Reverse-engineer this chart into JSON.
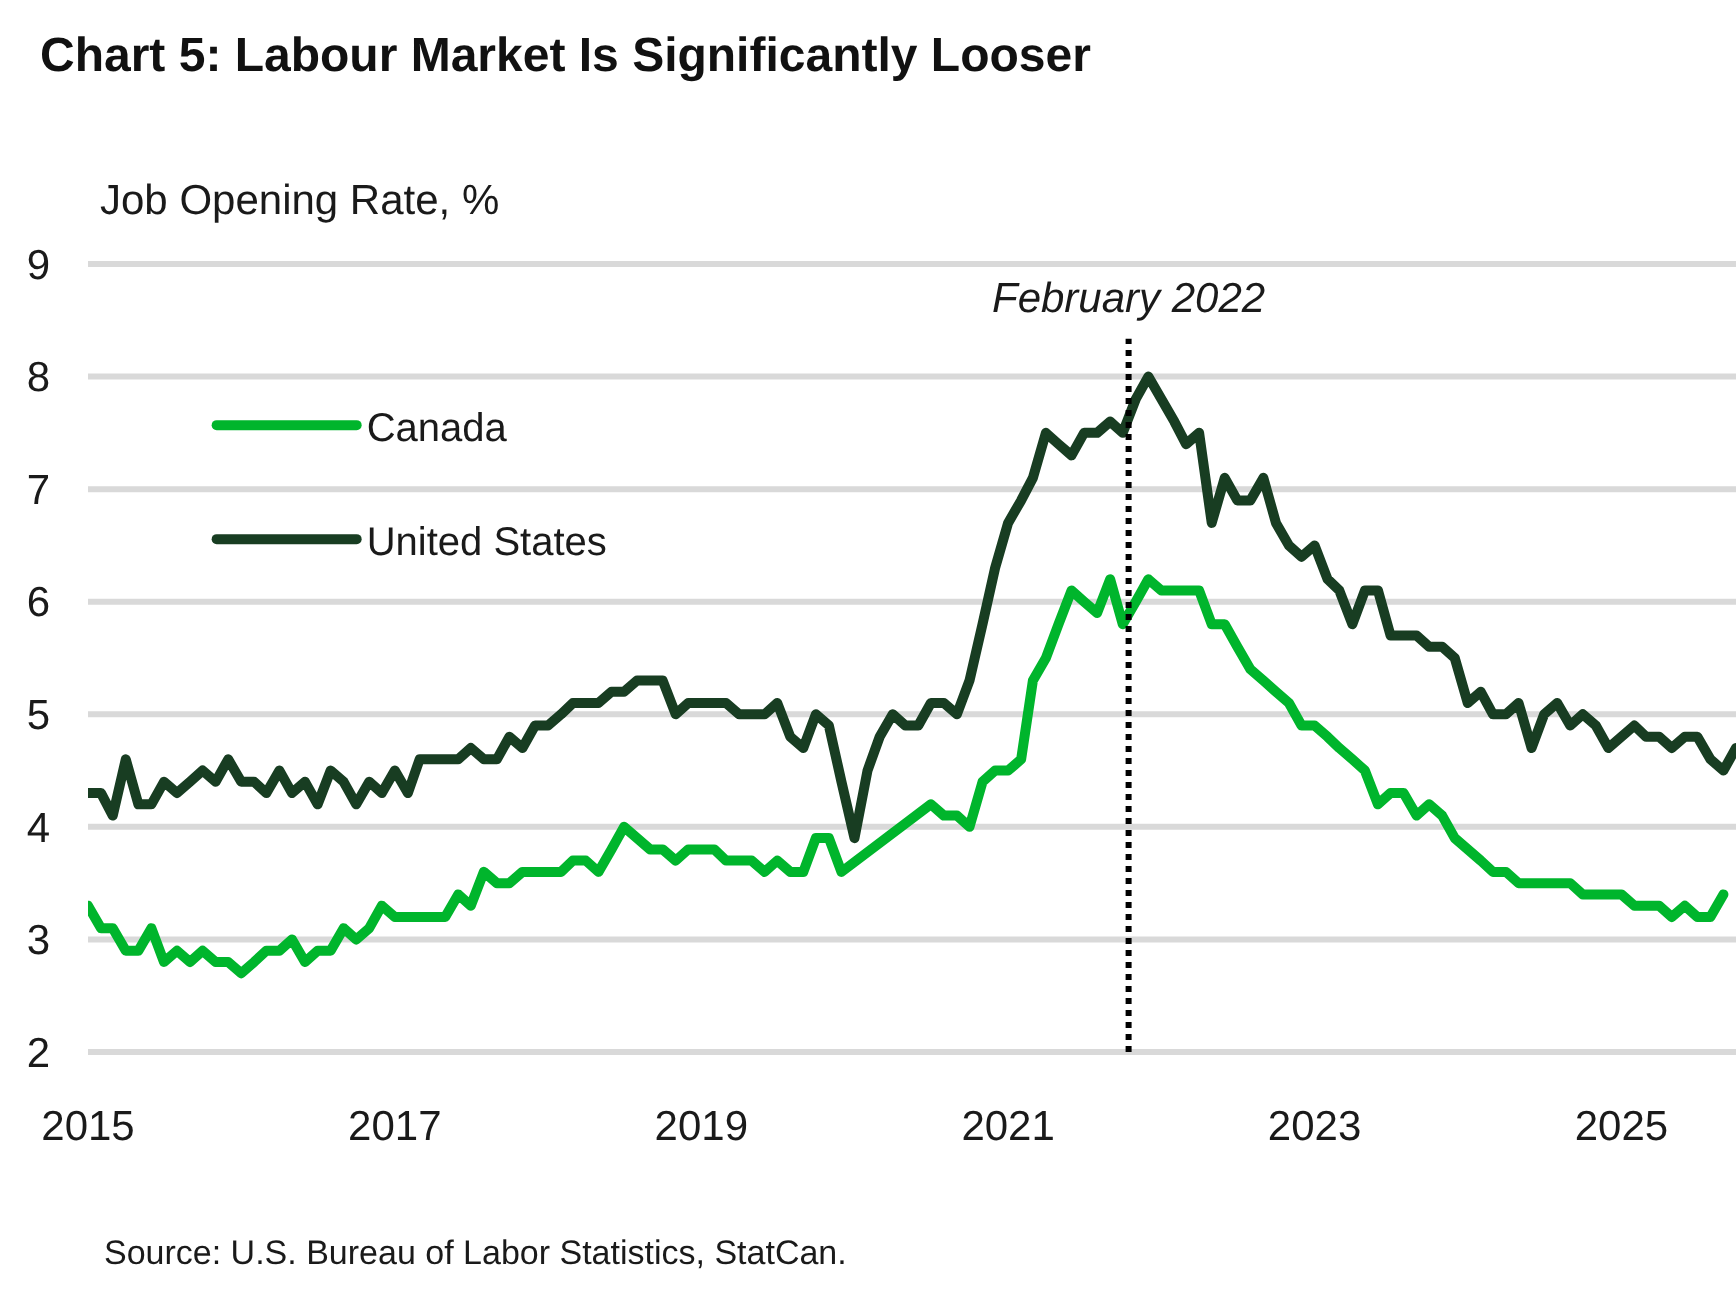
{
  "chart_data": {
    "type": "line",
    "title": "Chart 5: Labour Market Is Significantly Looser",
    "ylabel": "Job Opening Rate, %",
    "xlim": [
      "2015-01-01",
      "2025-10-01"
    ],
    "xticks": [
      "2015",
      "2017",
      "2019",
      "2021",
      "2023",
      "2025"
    ],
    "ylim": [
      2,
      9
    ],
    "yticks": [
      2,
      3,
      4,
      5,
      6,
      7,
      8,
      9
    ],
    "grid": "y",
    "legend": "top left",
    "line_style": "solid",
    "series": [
      {
        "name": "Canada",
        "color": "#00b52c",
        "x": [
          "2015-01",
          "2015-02",
          "2015-03",
          "2015-04",
          "2015-05",
          "2015-06",
          "2015-07",
          "2015-08",
          "2015-09",
          "2015-10",
          "2015-11",
          "2015-12",
          "2016-01",
          "2016-02",
          "2016-03",
          "2016-04",
          "2016-05",
          "2016-06",
          "2016-07",
          "2016-08",
          "2016-09",
          "2016-10",
          "2016-11",
          "2016-12",
          "2017-01",
          "2017-02",
          "2017-03",
          "2017-04",
          "2017-05",
          "2017-06",
          "2017-07",
          "2017-08",
          "2017-09",
          "2017-10",
          "2017-11",
          "2017-12",
          "2018-01",
          "2018-02",
          "2018-03",
          "2018-04",
          "2018-05",
          "2018-06",
          "2018-07",
          "2018-08",
          "2018-09",
          "2018-10",
          "2018-11",
          "2018-12",
          "2019-01",
          "2019-02",
          "2019-03",
          "2019-04",
          "2019-05",
          "2019-06",
          "2019-07",
          "2019-08",
          "2019-09",
          "2019-10",
          "2019-11",
          "2019-12",
          "2020-07",
          "2020-08",
          "2020-09",
          "2020-10",
          "2020-11",
          "2020-12",
          "2021-01",
          "2021-02",
          "2021-03",
          "2021-04",
          "2021-05",
          "2021-06",
          "2021-07",
          "2021-08",
          "2021-09",
          "2021-10",
          "2021-11",
          "2021-12",
          "2022-01",
          "2022-02",
          "2022-03",
          "2022-04",
          "2022-05",
          "2022-06",
          "2022-07",
          "2022-08",
          "2022-09",
          "2022-10",
          "2022-11",
          "2022-12",
          "2023-01",
          "2023-02",
          "2023-03",
          "2023-04",
          "2023-05",
          "2023-06",
          "2023-07",
          "2023-08",
          "2023-09",
          "2023-10",
          "2023-11",
          "2023-12",
          "2024-01",
          "2024-02",
          "2024-03",
          "2024-04",
          "2024-05",
          "2024-06",
          "2024-07",
          "2024-08",
          "2024-09",
          "2024-10",
          "2024-11",
          "2024-12",
          "2025-01",
          "2025-02",
          "2025-03",
          "2025-04",
          "2025-05",
          "2025-06",
          "2025-07",
          "2025-08",
          "2025-09"
        ],
        "values": [
          3.3,
          3.1,
          3.1,
          2.9,
          2.9,
          3.1,
          2.8,
          2.9,
          2.8,
          2.9,
          2.8,
          2.8,
          2.7,
          2.8,
          2.9,
          2.9,
          3.0,
          2.8,
          2.9,
          2.9,
          3.1,
          3.0,
          3.1,
          3.3,
          3.2,
          3.2,
          3.2,
          3.2,
          3.2,
          3.4,
          3.3,
          3.6,
          3.5,
          3.5,
          3.6,
          3.6,
          3.6,
          3.6,
          3.7,
          3.7,
          3.6,
          3.8,
          4.0,
          3.9,
          3.8,
          3.8,
          3.7,
          3.8,
          3.8,
          3.8,
          3.7,
          3.7,
          3.7,
          3.6,
          3.7,
          3.6,
          3.6,
          3.9,
          3.9,
          3.6,
          4.2,
          4.1,
          4.1,
          4.0,
          4.4,
          4.5,
          4.5,
          4.6,
          5.3,
          5.5,
          5.8,
          6.1,
          6.0,
          5.9,
          6.2,
          5.8,
          6.0,
          6.2,
          6.1,
          6.1,
          6.1,
          6.1,
          5.8,
          5.8,
          5.6,
          5.4,
          5.3,
          5.2,
          5.1,
          4.9,
          4.9,
          4.8,
          4.7,
          4.6,
          4.5,
          4.2,
          4.3,
          4.3,
          4.1,
          4.2,
          4.1,
          3.9,
          3.8,
          3.7,
          3.6,
          3.6,
          3.5,
          3.5,
          3.5,
          3.5,
          3.5,
          3.4,
          3.4,
          3.4,
          3.4,
          3.3,
          3.3,
          3.3,
          3.2,
          3.3,
          3.2,
          3.2,
          3.4
        ]
      },
      {
        "name": "United States",
        "color": "#183d22",
        "x": [
          "2015-01",
          "2015-02",
          "2015-03",
          "2015-04",
          "2015-05",
          "2015-06",
          "2015-07",
          "2015-08",
          "2015-09",
          "2015-10",
          "2015-11",
          "2015-12",
          "2016-01",
          "2016-02",
          "2016-03",
          "2016-04",
          "2016-05",
          "2016-06",
          "2016-07",
          "2016-08",
          "2016-09",
          "2016-10",
          "2016-11",
          "2016-12",
          "2017-01",
          "2017-02",
          "2017-03",
          "2017-04",
          "2017-05",
          "2017-06",
          "2017-07",
          "2017-08",
          "2017-09",
          "2017-10",
          "2017-11",
          "2017-12",
          "2018-01",
          "2018-02",
          "2018-03",
          "2018-04",
          "2018-05",
          "2018-06",
          "2018-07",
          "2018-08",
          "2018-09",
          "2018-10",
          "2018-11",
          "2018-12",
          "2019-01",
          "2019-02",
          "2019-03",
          "2019-04",
          "2019-05",
          "2019-06",
          "2019-07",
          "2019-08",
          "2019-09",
          "2019-10",
          "2019-11",
          "2019-12",
          "2020-01",
          "2020-02",
          "2020-03",
          "2020-04",
          "2020-05",
          "2020-06",
          "2020-07",
          "2020-08",
          "2020-09",
          "2020-10",
          "2020-11",
          "2020-12",
          "2021-01",
          "2021-02",
          "2021-03",
          "2021-04",
          "2021-05",
          "2021-06",
          "2021-07",
          "2021-08",
          "2021-09",
          "2021-10",
          "2021-11",
          "2021-12",
          "2022-01",
          "2022-02",
          "2022-03",
          "2022-04",
          "2022-05",
          "2022-06",
          "2022-07",
          "2022-08",
          "2022-09",
          "2022-10",
          "2022-11",
          "2022-12",
          "2023-01",
          "2023-02",
          "2023-03",
          "2023-04",
          "2023-05",
          "2023-06",
          "2023-07",
          "2023-08",
          "2023-09",
          "2023-10",
          "2023-11",
          "2023-12",
          "2024-01",
          "2024-02",
          "2024-03",
          "2024-04",
          "2024-05",
          "2024-06",
          "2024-07",
          "2024-08",
          "2024-09",
          "2024-10",
          "2024-11",
          "2024-12",
          "2025-01",
          "2025-02",
          "2025-03",
          "2025-04",
          "2025-05",
          "2025-06",
          "2025-07",
          "2025-08",
          "2025-09",
          "2025-10"
        ],
        "values": [
          4.3,
          4.3,
          4.1,
          4.6,
          4.2,
          4.2,
          4.4,
          4.3,
          4.4,
          4.5,
          4.4,
          4.6,
          4.4,
          4.4,
          4.3,
          4.5,
          4.3,
          4.4,
          4.2,
          4.5,
          4.4,
          4.2,
          4.4,
          4.3,
          4.5,
          4.3,
          4.6,
          4.6,
          4.6,
          4.6,
          4.7,
          4.6,
          4.6,
          4.8,
          4.7,
          4.9,
          4.9,
          5.0,
          5.1,
          5.1,
          5.1,
          5.2,
          5.2,
          5.3,
          5.3,
          5.3,
          5.0,
          5.1,
          5.1,
          5.1,
          5.1,
          5.0,
          5.0,
          5.0,
          5.1,
          4.8,
          4.7,
          5.0,
          4.9,
          4.4,
          3.9,
          4.5,
          4.8,
          5.0,
          4.9,
          4.9,
          5.1,
          5.1,
          5.0,
          5.3,
          5.8,
          6.3,
          6.7,
          6.9,
          7.1,
          7.5,
          7.4,
          7.3,
          7.5,
          7.5,
          7.6,
          7.5,
          7.8,
          8.0,
          7.8,
          7.6,
          7.4,
          7.5,
          6.7,
          7.1,
          6.9,
          6.9,
          7.1,
          6.7,
          6.5,
          6.4,
          6.5,
          6.2,
          6.1,
          5.8,
          6.1,
          6.1,
          5.7,
          5.7,
          5.7,
          5.6,
          5.6,
          5.5,
          5.1,
          5.2,
          5.0,
          5.0,
          5.1,
          4.7,
          5.0,
          5.1,
          4.9,
          5.0,
          4.9,
          4.7,
          4.8,
          4.9,
          4.8,
          4.8,
          4.7,
          4.8,
          4.8,
          4.6,
          4.5,
          4.7
        ]
      }
    ],
    "ref_lines": [
      {
        "axis": "x",
        "value": "2021-10-15",
        "label": "February 2022",
        "color": "#000000",
        "line_style": "dotted"
      }
    ],
    "annotations": [
      "Source: U.S. Bureau of Labor Statistics, StatCan."
    ]
  }
}
